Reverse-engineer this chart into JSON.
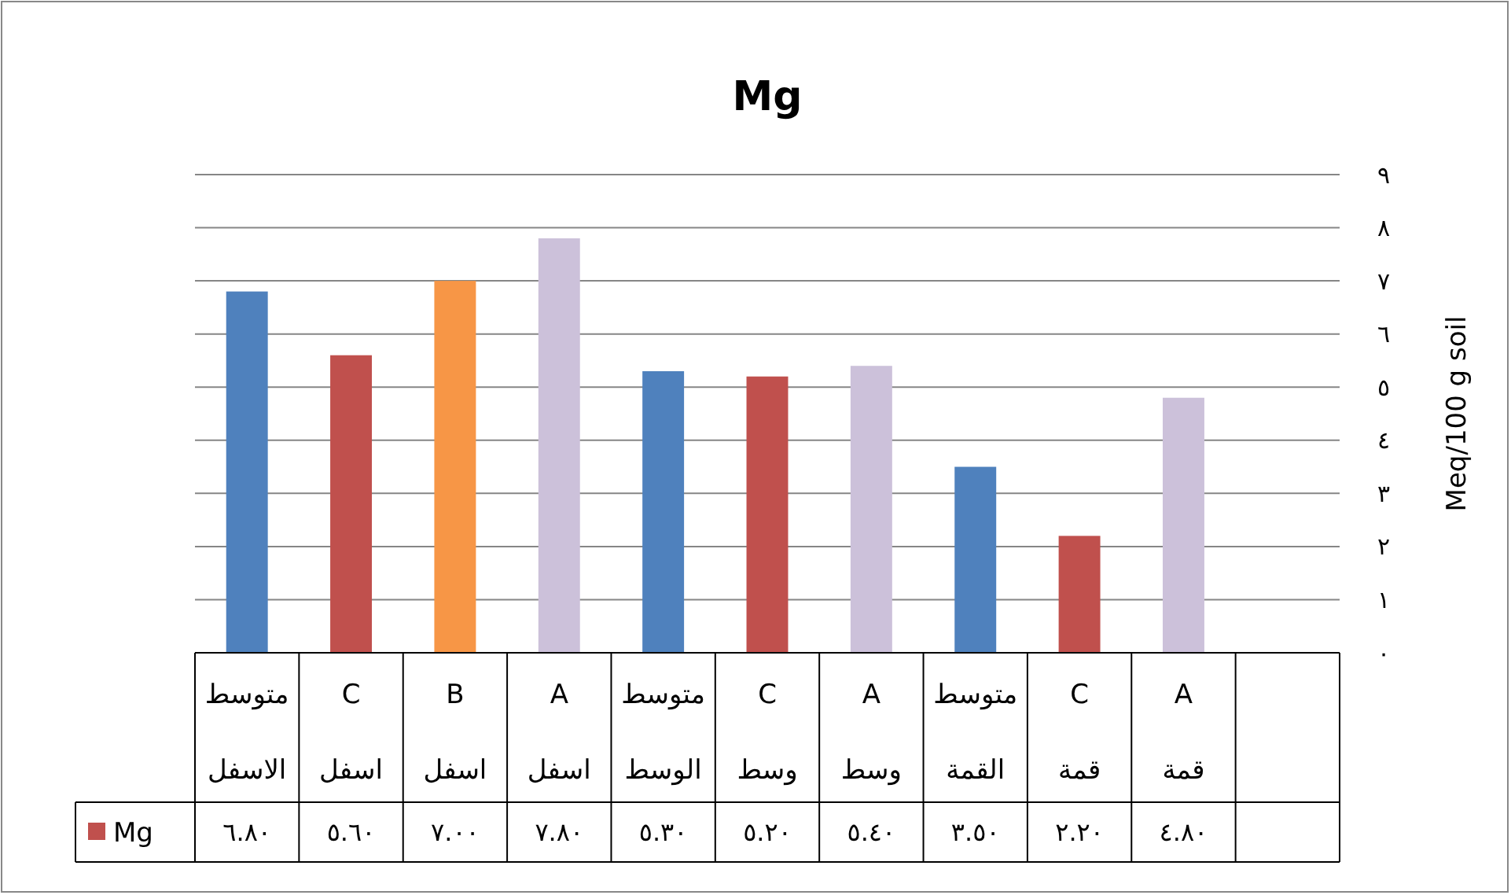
{
  "chart_data": {
    "type": "bar",
    "title": "Mg",
    "ylabel": "Meq/100 g soil",
    "categories": [
      "متوسط الاسفل",
      "C اسفل",
      "B اسفل",
      "A اسفل",
      "متوسط الوسط",
      "C وسط",
      "A وسط",
      "متوسط القمة",
      "C قمة",
      "A قمة",
      null
    ],
    "series": [
      {
        "name": "Mg",
        "color": "#c0504d",
        "values": [
          6.8,
          5.6,
          7.0,
          7.8,
          5.3,
          5.2,
          5.4,
          3.5,
          2.2,
          4.8,
          null
        ],
        "colors": [
          "#4f81bd",
          "#c0504d",
          "#f79646",
          "#ccc1da",
          "#4f81bd",
          "#c0504d",
          "#ccc1da",
          "#4f81bd",
          "#c0504d",
          "#ccc1da",
          null
        ],
        "value_labels": [
          "٦.٨٠",
          "٥.٦٠",
          "٧.٠٠",
          "٧.٨٠",
          "٥.٣٠",
          "٥.٢٠",
          "٥.٤٠",
          "٣.٥٠",
          "٢.٢٠",
          "٤.٨٠",
          null
        ]
      }
    ],
    "ylim": [
      0,
      9
    ],
    "yticks": [
      {
        "value": 0,
        "label": "٠"
      },
      {
        "value": 1,
        "label": "١"
      },
      {
        "value": 2,
        "label": "٢"
      },
      {
        "value": 3,
        "label": "٣"
      },
      {
        "value": 4,
        "label": "٤"
      },
      {
        "value": 5,
        "label": "٥"
      },
      {
        "value": 6,
        "label": "٦"
      },
      {
        "value": 7,
        "label": "٧"
      },
      {
        "value": 8,
        "label": "٨"
      },
      {
        "value": 9,
        "label": "٩"
      }
    ],
    "grid": "y",
    "legend": "bottom left"
  }
}
